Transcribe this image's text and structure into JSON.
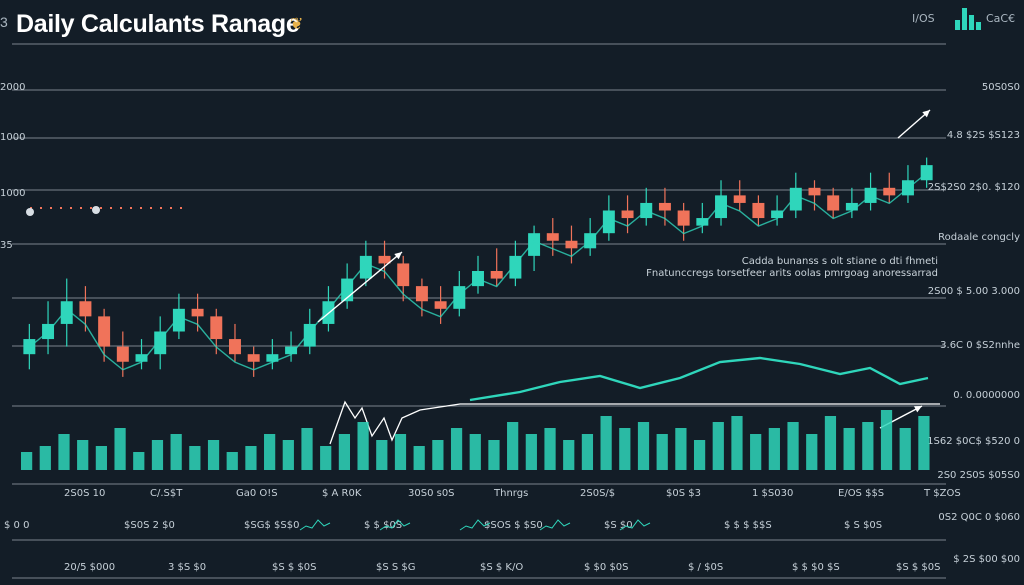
{
  "header": {
    "corner_text": "3",
    "title": "Daily Calculants Ranage",
    "title_icon": "pennant-icon",
    "top_right_1": "I/OS",
    "top_right_2": "CaC€"
  },
  "notes": {
    "line1": "Cadda bunanss s olt stiane o dti fhmeti",
    "line2": "Fnatunccregs torsetfeer arits oolas pmrgoag anoressarrad"
  },
  "colors": {
    "background": "#131d27",
    "bull": "#2fd6bb",
    "bear": "#f0735a",
    "grid": "#cdd6dd"
  },
  "chart_data": {
    "type": "candlestick",
    "title": "Daily Calculants Ranage",
    "left_axis_labels": [
      {
        "y_label": "2000"
      },
      {
        "y_label": "1000"
      },
      {
        "y_label": "1000"
      },
      {
        "y_label": "35"
      }
    ],
    "right_axis_labels": [
      "50S0S0",
      "4.8 $2S $S123",
      "2S$2S0 2$0. $120",
      "Rodaale congcly",
      "2S00 $ 5.00 3.000",
      "3.6C 0 $S2nnhe",
      "0. 0.0000000",
      "1S62 $0C$ $520 0",
      "2S0 2S0S $05S0",
      "0S2 Q0C 0 $060",
      "$ 2S $00 $00"
    ],
    "candles": [
      {
        "o": 5,
        "c": 7,
        "h": 9,
        "l": 3
      },
      {
        "o": 7,
        "c": 9,
        "h": 12,
        "l": 5
      },
      {
        "o": 9,
        "c": 12,
        "h": 15,
        "l": 6
      },
      {
        "o": 12,
        "c": 10,
        "h": 14,
        "l": 8
      },
      {
        "o": 10,
        "c": 6,
        "h": 11,
        "l": 4
      },
      {
        "o": 6,
        "c": 4,
        "h": 8,
        "l": 2
      },
      {
        "o": 4,
        "c": 5,
        "h": 7,
        "l": 3
      },
      {
        "o": 5,
        "c": 8,
        "h": 10,
        "l": 3
      },
      {
        "o": 8,
        "c": 11,
        "h": 13,
        "l": 7
      },
      {
        "o": 11,
        "c": 10,
        "h": 13,
        "l": 8
      },
      {
        "o": 10,
        "c": 7,
        "h": 11,
        "l": 5
      },
      {
        "o": 7,
        "c": 5,
        "h": 9,
        "l": 4
      },
      {
        "o": 5,
        "c": 4,
        "h": 6,
        "l": 2
      },
      {
        "o": 4,
        "c": 5,
        "h": 7,
        "l": 3
      },
      {
        "o": 5,
        "c": 6,
        "h": 8,
        "l": 4
      },
      {
        "o": 6,
        "c": 9,
        "h": 11,
        "l": 5
      },
      {
        "o": 9,
        "c": 12,
        "h": 14,
        "l": 8
      },
      {
        "o": 12,
        "c": 15,
        "h": 17,
        "l": 11
      },
      {
        "o": 15,
        "c": 18,
        "h": 20,
        "l": 14
      },
      {
        "o": 18,
        "c": 17,
        "h": 20,
        "l": 15
      },
      {
        "o": 17,
        "c": 14,
        "h": 18,
        "l": 12
      },
      {
        "o": 14,
        "c": 12,
        "h": 15,
        "l": 10
      },
      {
        "o": 12,
        "c": 11,
        "h": 14,
        "l": 9
      },
      {
        "o": 11,
        "c": 14,
        "h": 16,
        "l": 10
      },
      {
        "o": 14,
        "c": 16,
        "h": 18,
        "l": 13
      },
      {
        "o": 16,
        "c": 15,
        "h": 19,
        "l": 14
      },
      {
        "o": 15,
        "c": 18,
        "h": 20,
        "l": 14
      },
      {
        "o": 18,
        "c": 21,
        "h": 22,
        "l": 16
      },
      {
        "o": 21,
        "c": 20,
        "h": 23,
        "l": 18
      },
      {
        "o": 20,
        "c": 19,
        "h": 22,
        "l": 17
      },
      {
        "o": 19,
        "c": 21,
        "h": 23,
        "l": 18
      },
      {
        "o": 21,
        "c": 24,
        "h": 26,
        "l": 20
      },
      {
        "o": 24,
        "c": 23,
        "h": 26,
        "l": 21
      },
      {
        "o": 23,
        "c": 25,
        "h": 27,
        "l": 22
      },
      {
        "o": 25,
        "c": 24,
        "h": 27,
        "l": 22
      },
      {
        "o": 24,
        "c": 22,
        "h": 25,
        "l": 20
      },
      {
        "o": 22,
        "c": 23,
        "h": 25,
        "l": 21
      },
      {
        "o": 23,
        "c": 26,
        "h": 28,
        "l": 22
      },
      {
        "o": 26,
        "c": 25,
        "h": 28,
        "l": 24
      },
      {
        "o": 25,
        "c": 23,
        "h": 26,
        "l": 22
      },
      {
        "o": 23,
        "c": 24,
        "h": 26,
        "l": 22
      },
      {
        "o": 24,
        "c": 27,
        "h": 29,
        "l": 23
      },
      {
        "o": 27,
        "c": 26,
        "h": 28,
        "l": 24
      },
      {
        "o": 26,
        "c": 24,
        "h": 27,
        "l": 23
      },
      {
        "o": 24,
        "c": 25,
        "h": 27,
        "l": 23
      },
      {
        "o": 25,
        "c": 27,
        "h": 29,
        "l": 24
      },
      {
        "o": 27,
        "c": 26,
        "h": 29,
        "l": 25
      },
      {
        "o": 26,
        "c": 28,
        "h": 30,
        "l": 25
      },
      {
        "o": 28,
        "c": 30,
        "h": 31,
        "l": 27
      }
    ],
    "volume": [
      3,
      4,
      6,
      5,
      4,
      7,
      3,
      5,
      6,
      4,
      5,
      3,
      4,
      6,
      5,
      7,
      4,
      6,
      8,
      5,
      6,
      4,
      5,
      7,
      6,
      5,
      8,
      6,
      7,
      5,
      6,
      9,
      7,
      8,
      6,
      7,
      5,
      8,
      9,
      6,
      7,
      8,
      6,
      9,
      7,
      8,
      10,
      7,
      9
    ],
    "x_tick_labels": [
      "2S0S 10",
      "C/.S$T",
      "Ga0 O!S",
      "$ A R0K",
      "30S0 s0S",
      "Thnrgs",
      "2S0S/$",
      "$0S $3",
      "1 $S030",
      "E/OS $$S",
      "T $ZOS"
    ],
    "bottom_row_1": [
      "$ 0 0",
      "$S0S 2 $0",
      "$SG$ $S$0",
      "$ $ $0S",
      "$SOS $ $S0",
      "$S $0",
      "$ $ $ $$S",
      "$ S $0S"
    ],
    "bottom_row_2": [
      "20/5 $000",
      "3 $S $0",
      "$S $ $0S",
      "$S S $G",
      "$S $ K/O",
      "$ $0 $0S",
      "$ / $0S",
      "$ $ $0 $S",
      "$S $ $0S"
    ]
  }
}
